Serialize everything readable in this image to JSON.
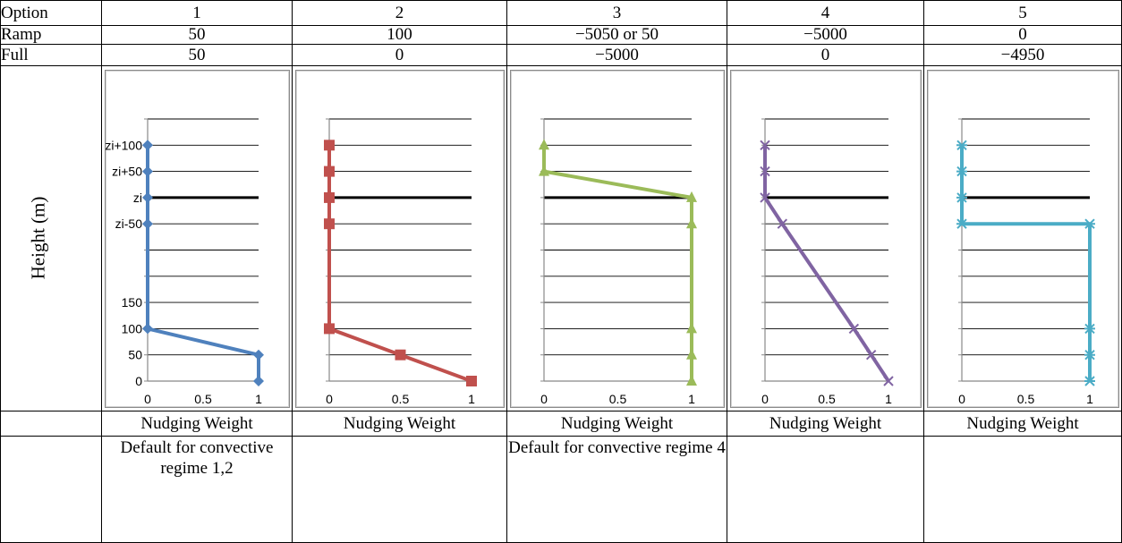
{
  "table": {
    "header_label": "Option",
    "ramp_label": "Ramp",
    "full_label": "Full",
    "options": [
      "1",
      "2",
      "3",
      "4",
      "5"
    ],
    "ramp": [
      "50",
      "100",
      "−5050 or 50",
      "−5000",
      "0"
    ],
    "full": [
      "50",
      "0",
      "−5000",
      "0",
      "−4950"
    ],
    "xlabel": "Nudging Weight",
    "notes": [
      "Default for convective regime 1,2",
      "",
      "Default for convective regime 4",
      "",
      ""
    ]
  },
  "chart_data": [
    {
      "type": "line",
      "color": "#4f81bd",
      "marker": "diamond",
      "xlabel": "Nudging Weight",
      "ylabel": "Height (m)",
      "xlim": [
        0,
        1
      ],
      "xticks": [
        "0",
        "0.5",
        "1"
      ],
      "ytick_labels": [
        "0",
        "50",
        "100",
        "150",
        "zi-50",
        "zi",
        "zi+50",
        "zi+100"
      ],
      "points": [
        {
          "w": 1,
          "h": "0"
        },
        {
          "w": 1,
          "h": "50"
        },
        {
          "w": 0,
          "h": "100"
        },
        {
          "w": 0,
          "h": "zi-50"
        },
        {
          "w": 0,
          "h": "zi"
        },
        {
          "w": 0,
          "h": "zi+50"
        },
        {
          "w": 0,
          "h": "zi+100"
        }
      ]
    },
    {
      "type": "line",
      "color": "#c0504d",
      "marker": "square",
      "xlabel": "Nudging Weight",
      "xlim": [
        0,
        1
      ],
      "xticks": [
        "0",
        "0.5",
        "1"
      ],
      "points": [
        {
          "w": 1,
          "h": "0"
        },
        {
          "w": 0.5,
          "h": "50"
        },
        {
          "w": 0,
          "h": "100"
        },
        {
          "w": 0,
          "h": "zi-50"
        },
        {
          "w": 0,
          "h": "zi"
        },
        {
          "w": 0,
          "h": "zi+50"
        },
        {
          "w": 0,
          "h": "zi+100"
        }
      ]
    },
    {
      "type": "line",
      "color": "#9bbb59",
      "marker": "triangle",
      "xlabel": "Nudging Weight",
      "xlim": [
        0,
        1
      ],
      "xticks": [
        "0",
        "0.5",
        "1"
      ],
      "points": [
        {
          "w": 1,
          "h": "0"
        },
        {
          "w": 1,
          "h": "50"
        },
        {
          "w": 1,
          "h": "100"
        },
        {
          "w": 1,
          "h": "zi-50"
        },
        {
          "w": 1,
          "h": "zi"
        },
        {
          "w": 0,
          "h": "zi+50"
        },
        {
          "w": 0,
          "h": "zi+100"
        }
      ]
    },
    {
      "type": "line",
      "color": "#8064a2",
      "marker": "x",
      "xlabel": "Nudging Weight",
      "xlim": [
        0,
        1
      ],
      "xticks": [
        "0",
        "0.5",
        "1"
      ],
      "points": [
        {
          "w": 1,
          "h": "0"
        },
        {
          "w": 0.86,
          "h": "50"
        },
        {
          "w": 0.72,
          "h": "100"
        },
        {
          "w": 0.14,
          "h": "zi-50"
        },
        {
          "w": 0,
          "h": "zi"
        },
        {
          "w": 0,
          "h": "zi+50"
        },
        {
          "w": 0,
          "h": "zi+100"
        }
      ]
    },
    {
      "type": "line",
      "color": "#4bacc6",
      "marker": "star",
      "xlabel": "Nudging Weight",
      "xlim": [
        0,
        1
      ],
      "xticks": [
        "0",
        "0.5",
        "1"
      ],
      "points": [
        {
          "w": 1,
          "h": "0"
        },
        {
          "w": 1,
          "h": "50"
        },
        {
          "w": 1,
          "h": "100"
        },
        {
          "w": 1,
          "h": "zi-50"
        },
        {
          "w": 0,
          "h": "zi-50"
        },
        {
          "w": 0,
          "h": "zi"
        },
        {
          "w": 0,
          "h": "zi+50"
        },
        {
          "w": 0,
          "h": "zi+100"
        }
      ]
    }
  ]
}
